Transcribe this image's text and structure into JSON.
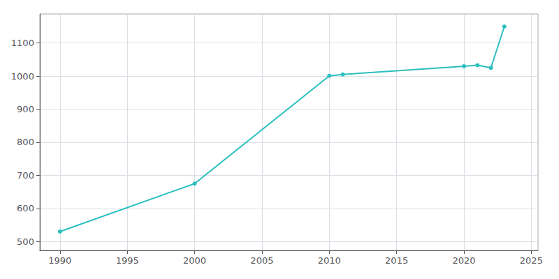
{
  "chart_data": {
    "type": "line",
    "x": [
      1990,
      2000,
      2010,
      2011,
      2020,
      2021,
      2022,
      2023
    ],
    "values": [
      530,
      675,
      1001,
      1005,
      1030,
      1033,
      1025,
      1150
    ],
    "color": "#2abfbf",
    "marker": "circle",
    "xlim": [
      1988.5,
      2025.5
    ],
    "ylim": [
      473,
      1188
    ],
    "xticks": [
      1990,
      1995,
      2000,
      2005,
      2010,
      2015,
      2020,
      2025
    ],
    "yticks": [
      500,
      600,
      700,
      800,
      900,
      1000,
      1100
    ],
    "grid": true
  }
}
